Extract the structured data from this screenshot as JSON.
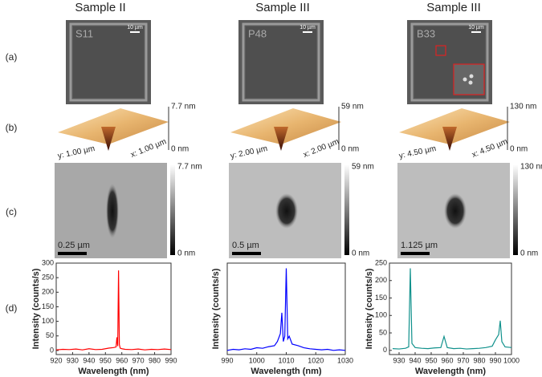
{
  "headers": [
    "Sample II",
    "Sample III",
    "Sample III"
  ],
  "row_labels": [
    "(a)",
    "(b)",
    "(c)",
    "(d)"
  ],
  "panels": [
    {
      "optical_label": "S11",
      "optical_scale": "10 µm",
      "afm3d": {
        "z_max": "7.7 nm",
        "z_min": "0 nm",
        "y_axis": "y: 1.00 µm",
        "x_axis": "x: 1.00 µm"
      },
      "afm2d": {
        "scale_max": "7.7 nm",
        "scale_min": "0 nm",
        "scale_bar": "0.25 µm"
      }
    },
    {
      "optical_label": "P48",
      "optical_scale": "10 µm",
      "afm3d": {
        "z_max": "59 nm",
        "z_min": "0 nm",
        "y_axis": "y: 2.00 µm",
        "x_axis": "x: 2.00 µm"
      },
      "afm2d": {
        "scale_max": "59 nm",
        "scale_min": "0 nm",
        "scale_bar": "0.5 µm"
      }
    },
    {
      "optical_label": "B33",
      "optical_scale": "10 µm",
      "afm3d": {
        "z_max": "130 nm",
        "z_min": "0 nm",
        "y_axis": "y: 4.50 µm",
        "x_axis": "x: 4.50 µm"
      },
      "afm2d": {
        "scale_max": "130 nm",
        "scale_min": "0 nm",
        "scale_bar": "1.125 µm"
      }
    }
  ],
  "chart_data": [
    {
      "type": "line",
      "xlabel": "Wavelength (nm)",
      "ylabel": "Intensity (counts/s)",
      "xlim": [
        920,
        990
      ],
      "xticks": [
        920,
        930,
        940,
        950,
        960,
        970,
        980,
        990
      ],
      "ylim": [
        -14,
        300
      ],
      "yticks": [
        0,
        50,
        100,
        150,
        200,
        250,
        300
      ],
      "x": [
        920,
        924,
        928,
        932,
        936,
        940,
        944,
        948,
        952,
        955,
        956.5,
        957,
        957.5,
        958,
        958.5,
        959,
        960,
        962,
        966,
        970,
        974,
        978,
        982,
        986,
        990
      ],
      "series": [
        {
          "color": "#ff0000",
          "values": [
            2,
            4,
            3,
            5,
            2,
            6,
            3,
            4,
            8,
            10,
            12,
            45,
            15,
            275,
            20,
            8,
            6,
            4,
            3,
            5,
            2,
            4,
            3,
            5,
            3
          ]
        }
      ]
    },
    {
      "type": "line",
      "xlabel": "Wavelength (nm)",
      "ylabel": "Intensity (counts/s)",
      "xlim": [
        990,
        1030
      ],
      "xticks": [
        990,
        1000,
        1010,
        1020,
        1030
      ],
      "ylim": [
        -5,
        170
      ],
      "x": [
        990,
        992,
        994,
        996,
        998,
        1000,
        1002,
        1004,
        1006,
        1007,
        1008,
        1008.5,
        1009,
        1009.5,
        1010,
        1010.5,
        1011,
        1012,
        1014,
        1016,
        1018,
        1020,
        1022,
        1024,
        1026,
        1028,
        1030
      ],
      "series": [
        {
          "color": "#0000ff",
          "values": [
            3,
            5,
            4,
            6,
            5,
            8,
            7,
            10,
            12,
            20,
            35,
            75,
            20,
            30,
            160,
            25,
            30,
            15,
            12,
            8,
            6,
            5,
            4,
            5,
            3,
            4,
            3
          ]
        }
      ]
    },
    {
      "type": "line",
      "xlabel": "Wavelength (nm)",
      "ylabel": "Intensity (counts/s)",
      "xlim": [
        924,
        1000
      ],
      "xticks": [
        930,
        940,
        950,
        960,
        970,
        980,
        990,
        1000
      ],
      "ylim": [
        -12,
        250
      ],
      "yticks": [
        0,
        50,
        100,
        150,
        200,
        250
      ],
      "x": [
        926,
        930,
        934,
        936,
        937,
        938,
        940,
        944,
        948,
        952,
        956,
        958,
        960,
        964,
        968,
        972,
        976,
        980,
        984,
        988,
        990,
        992,
        993,
        994,
        996,
        1000
      ],
      "series": [
        {
          "color": "#10918c",
          "values": [
            5,
            4,
            6,
            10,
            235,
            20,
            8,
            6,
            5,
            7,
            8,
            40,
            8,
            5,
            6,
            4,
            5,
            6,
            8,
            12,
            30,
            45,
            85,
            25,
            10,
            8
          ]
        }
      ]
    }
  ]
}
